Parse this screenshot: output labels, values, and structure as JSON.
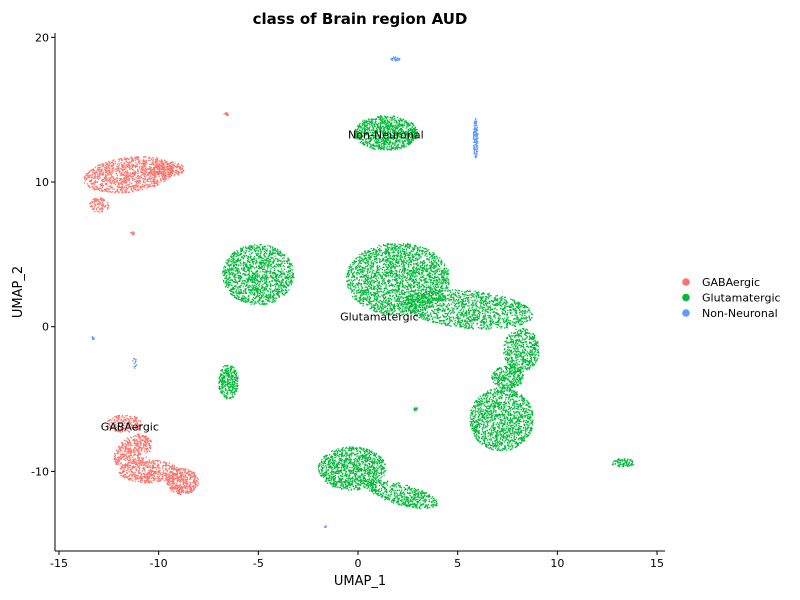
{
  "chart_data": {
    "type": "scatter",
    "title": "class of Brain region AUD",
    "xlabel": "UMAP_1",
    "ylabel": "UMAP_2",
    "xlim": [
      -15.2,
      15.4
    ],
    "ylim": [
      -15.5,
      20.3
    ],
    "xticks": [
      -15,
      -10,
      -5,
      0,
      5,
      10,
      15
    ],
    "yticks": [
      -10,
      0,
      10,
      20
    ],
    "grid": false,
    "legend_position": "right",
    "series": [
      {
        "name": "GABAergic",
        "color": "#F8766D",
        "label_position": [
          -12.9,
          -6.9
        ],
        "clusters": [
          {
            "cx": -11.5,
            "cy": 10.5,
            "rx": 2.3,
            "ry": 1.2,
            "rot": 12,
            "n": 1100
          },
          {
            "cx": -9.5,
            "cy": 10.9,
            "rx": 0.8,
            "ry": 0.5,
            "rot": 0,
            "n": 200
          },
          {
            "cx": -13.0,
            "cy": 8.4,
            "rx": 0.5,
            "ry": 0.5,
            "rot": 0,
            "n": 100
          },
          {
            "cx": -11.7,
            "cy": -6.7,
            "rx": 0.9,
            "ry": 0.6,
            "rot": 0,
            "n": 200
          },
          {
            "cx": -11.3,
            "cy": -8.6,
            "rx": 0.8,
            "ry": 1.3,
            "rot": -30,
            "n": 400
          },
          {
            "cx": -10.5,
            "cy": -10.0,
            "rx": 1.5,
            "ry": 0.8,
            "rot": 0,
            "n": 500
          },
          {
            "cx": -8.8,
            "cy": -10.7,
            "rx": 0.8,
            "ry": 0.9,
            "rot": 0,
            "n": 400
          },
          {
            "cx": -6.6,
            "cy": 14.7,
            "rx": 0.12,
            "ry": 0.12,
            "rot": 0,
            "n": 12
          },
          {
            "cx": -11.3,
            "cy": 6.5,
            "rx": 0.12,
            "ry": 0.15,
            "rot": 0,
            "n": 12
          }
        ]
      },
      {
        "name": "Glutamatergic",
        "color": "#00BA38",
        "label_position": [
          -0.9,
          0.7
        ],
        "clusters": [
          {
            "cx": 1.4,
            "cy": 13.4,
            "rx": 1.6,
            "ry": 1.2,
            "rot": 0,
            "n": 1000
          },
          {
            "cx": -5.0,
            "cy": 3.6,
            "rx": 1.8,
            "ry": 2.1,
            "rot": 0,
            "n": 1400
          },
          {
            "cx": 2.0,
            "cy": 3.3,
            "rx": 2.6,
            "ry": 2.5,
            "rot": 0,
            "n": 2300
          },
          {
            "cx": 5.5,
            "cy": 1.2,
            "rx": 3.3,
            "ry": 1.3,
            "rot": -8,
            "n": 1300
          },
          {
            "cx": 8.2,
            "cy": -1.6,
            "rx": 0.9,
            "ry": 1.5,
            "rot": 0,
            "n": 500
          },
          {
            "cx": 7.5,
            "cy": -3.5,
            "rx": 0.8,
            "ry": 0.8,
            "rot": 0,
            "n": 300
          },
          {
            "cx": 7.2,
            "cy": -6.4,
            "rx": 1.6,
            "ry": 2.2,
            "rot": 0,
            "n": 1300
          },
          {
            "cx": -6.5,
            "cy": -3.8,
            "rx": 0.5,
            "ry": 1.2,
            "rot": 0,
            "n": 300
          },
          {
            "cx": -0.3,
            "cy": -9.8,
            "rx": 1.7,
            "ry": 1.5,
            "rot": 0,
            "n": 1100
          },
          {
            "cx": 2.2,
            "cy": -11.6,
            "rx": 1.9,
            "ry": 0.7,
            "rot": -22,
            "n": 500
          },
          {
            "cx": 13.3,
            "cy": -9.4,
            "rx": 0.6,
            "ry": 0.3,
            "rot": 0,
            "n": 80
          },
          {
            "cx": 2.9,
            "cy": -5.7,
            "rx": 0.12,
            "ry": 0.12,
            "rot": 0,
            "n": 12
          }
        ]
      },
      {
        "name": "Non-Neuronal",
        "color": "#619CFF",
        "label_position": [
          -0.5,
          13.3
        ],
        "clusters": [
          {
            "cx": 5.9,
            "cy": 13.0,
            "rx": 0.12,
            "ry": 1.4,
            "rot": 0,
            "n": 150
          },
          {
            "cx": 1.9,
            "cy": 18.5,
            "rx": 0.25,
            "ry": 0.15,
            "rot": 0,
            "n": 30
          },
          {
            "cx": -13.3,
            "cy": -0.8,
            "rx": 0.08,
            "ry": 0.12,
            "rot": 0,
            "n": 8
          },
          {
            "cx": -11.2,
            "cy": -2.5,
            "rx": 0.1,
            "ry": 0.4,
            "rot": 0,
            "n": 14
          },
          {
            "cx": -1.6,
            "cy": -13.8,
            "rx": 0.08,
            "ry": 0.12,
            "rot": 0,
            "n": 6
          }
        ]
      }
    ]
  }
}
